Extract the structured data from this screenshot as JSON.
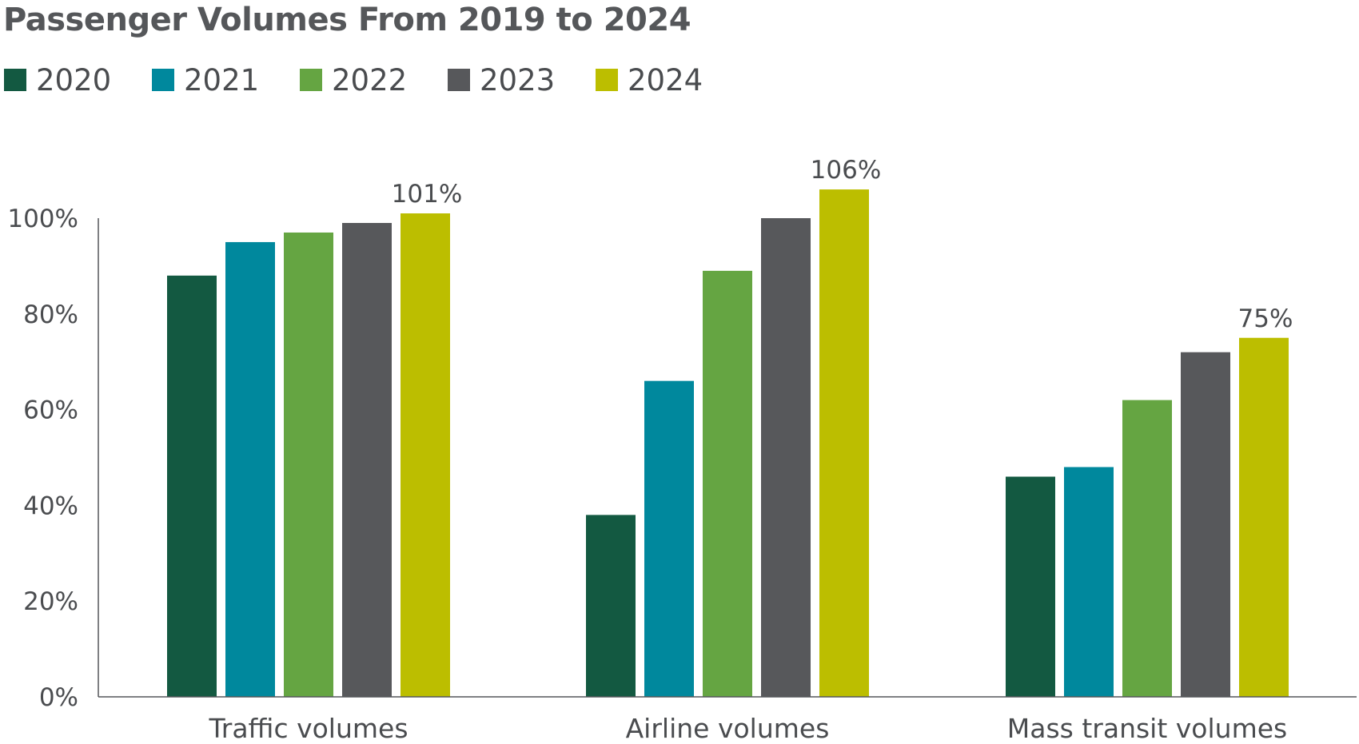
{
  "chart_data": {
    "type": "bar",
    "title": "Passenger Volumes From 2019 to 2024",
    "categories": [
      "Traffic volumes",
      "Airline volumes",
      "Mass transit volumes"
    ],
    "series": [
      {
        "name": "2020",
        "color": "#135941",
        "values": [
          88,
          38,
          46
        ]
      },
      {
        "name": "2021",
        "color": "#00889d",
        "values": [
          95,
          66,
          48
        ]
      },
      {
        "name": "2022",
        "color": "#65a542",
        "values": [
          97,
          89,
          62
        ]
      },
      {
        "name": "2023",
        "color": "#57585b",
        "values": [
          99,
          100,
          72
        ]
      },
      {
        "name": "2024",
        "color": "#bcbe00",
        "values": [
          101,
          106,
          75
        ]
      }
    ],
    "data_labels": [
      {
        "category_index": 0,
        "series_index": 4,
        "text": "101%"
      },
      {
        "category_index": 1,
        "series_index": 4,
        "text": "106%"
      },
      {
        "category_index": 2,
        "series_index": 4,
        "text": "75%"
      }
    ],
    "ylim": [
      0,
      100
    ],
    "yticks": [
      "0%",
      "20%",
      "40%",
      "60%",
      "80%",
      "100%"
    ],
    "legend_position": "top-left",
    "grid": false
  }
}
